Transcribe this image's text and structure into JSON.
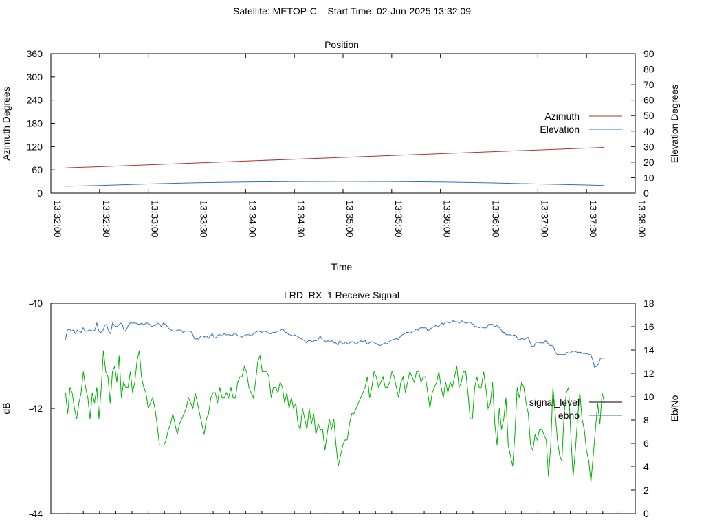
{
  "page_title": "Satellite: METOP-C    Start Time: 02-Jun-2025 13:32:09",
  "colors": {
    "azimuth": "#b03030",
    "elevation": "#2f6fbf",
    "signal_level": "#000000",
    "ebno": "#2f6fbf",
    "green_trace": "#00b000"
  },
  "chart_data": [
    {
      "type": "line",
      "title": "Position",
      "xlabel": "Time",
      "ylabel": "Azimuth Degrees",
      "y2label": "Elevation Degrees",
      "xlim": [
        "13:32:00",
        "13:38:00"
      ],
      "ylim": [
        0,
        360
      ],
      "y2lim": [
        0,
        90
      ],
      "x_ticks": [
        "13:32:00",
        "13:32:30",
        "13:33:00",
        "13:33:30",
        "13:34:00",
        "13:34:30",
        "13:35:00",
        "13:35:30",
        "13:36:00",
        "13:36:30",
        "13:37:00",
        "13:37:30",
        "13:38:00"
      ],
      "y_ticks": [
        "0",
        "60",
        "120",
        "180",
        "240",
        "300",
        "360"
      ],
      "y2_ticks": [
        "0",
        "10",
        "20",
        "30",
        "40",
        "50",
        "60",
        "70",
        "80",
        "90"
      ],
      "legend_position": "right",
      "series": [
        {
          "name": "Azimuth",
          "axis": "y",
          "x": [
            "13:32:09",
            "13:37:41"
          ],
          "values": [
            65,
            118
          ]
        },
        {
          "name": "Elevation",
          "axis": "y2",
          "x": [
            "13:32:09",
            "13:32:30",
            "13:33:00",
            "13:33:30",
            "13:34:00",
            "13:34:30",
            "13:35:00",
            "13:35:30",
            "13:36:00",
            "13:36:30",
            "13:37:00",
            "13:37:30",
            "13:37:41"
          ],
          "values": [
            4.5,
            5.0,
            6.0,
            6.8,
            7.2,
            7.5,
            7.6,
            7.5,
            7.2,
            6.7,
            6.0,
            5.3,
            5.0
          ]
        }
      ]
    },
    {
      "type": "line",
      "title": "LRD_RX_1 Receive Signal",
      "ylabel": "dB",
      "y2label": "Eb/No",
      "ylim": [
        -44,
        -40
      ],
      "y2lim": [
        0,
        18
      ],
      "y_ticks": [
        "-44",
        "-42",
        "-40"
      ],
      "y2_ticks": [
        "0",
        "2",
        "4",
        "6",
        "8",
        "10",
        "12",
        "14",
        "16",
        "18"
      ],
      "legend_position": "right",
      "series": [
        {
          "name": "signal_level",
          "axis": "y",
          "values": []
        },
        {
          "name": "ebno",
          "axis": "y2",
          "values": [
            14.9,
            15.7,
            15.8,
            15.6,
            15.7,
            15.4,
            15.7,
            15.6,
            15.5,
            15.9,
            15.6,
            15.6,
            15.7,
            15.7,
            15.6,
            15.7,
            16.3,
            15.6,
            15.5,
            15.6,
            16.1,
            16.2,
            15.6,
            15.4,
            16.3,
            16.1,
            16.0,
            16.1,
            16.3,
            16.2,
            15.6,
            15.7,
            16.1,
            16.3,
            16.3,
            16.3,
            16.3,
            16.2,
            16.2,
            16.3,
            16.1,
            16.3,
            16.3,
            16.2,
            16.0,
            16.1,
            16.1,
            16.3,
            16.2,
            16.0,
            16.3,
            16.2,
            16.0,
            15.8,
            15.7,
            15.6,
            15.6,
            15.7,
            15.7,
            15.7,
            15.5,
            15.6,
            15.6,
            15.6,
            15.6,
            15.3,
            14.9,
            15.0,
            14.9,
            15.2,
            15.2,
            15.1,
            15.2,
            15.0,
            15.2,
            15.4,
            15.0,
            15.1,
            15.3,
            15.3,
            15.2,
            15.4,
            15.3,
            15.3,
            15.3,
            15.2,
            15.4,
            15.4,
            15.2,
            15.2,
            15.1,
            15.2,
            15.3,
            15.3,
            15.3,
            15.2,
            15.4,
            15.5,
            15.6,
            15.6,
            15.5,
            15.6,
            15.6,
            15.5,
            15.4,
            15.4,
            15.5,
            15.5,
            15.6,
            15.6,
            15.7,
            15.8,
            15.5,
            15.5,
            15.3,
            15.3,
            15.2,
            15.3,
            15.2,
            15.1,
            15.0,
            14.9,
            14.8,
            14.6,
            14.8,
            14.8,
            14.7,
            14.8,
            14.8,
            14.9,
            15.2,
            14.9,
            14.8,
            14.7,
            14.8,
            14.7,
            14.8,
            14.6,
            14.6,
            14.4,
            14.8,
            14.6,
            14.5,
            14.7,
            14.5,
            14.6,
            14.7,
            14.7,
            14.5,
            14.6,
            14.7,
            14.8,
            14.7,
            14.8,
            14.5,
            14.6,
            14.7,
            14.7,
            14.6,
            14.5,
            14.4,
            14.4,
            14.5,
            14.6,
            14.5,
            14.7,
            14.8,
            14.9,
            14.9,
            15.0,
            14.9,
            15.2,
            15.3,
            15.4,
            15.5,
            15.5,
            15.4,
            15.6,
            15.6,
            15.8,
            15.7,
            15.9,
            15.9,
            15.9,
            15.9,
            15.6,
            15.8,
            15.9,
            16.0,
            16.1,
            16.0,
            16.1,
            16.3,
            16.2,
            16.4,
            16.4,
            16.3,
            16.4,
            16.5,
            16.4,
            16.4,
            16.3,
            16.5,
            16.4,
            16.3,
            16.3,
            16.4,
            16.3,
            16.2,
            16.0,
            16.0,
            15.9,
            16.0,
            15.9,
            15.9,
            15.9,
            16.2,
            16.2,
            16.2,
            16.0,
            16.1,
            16.0,
            15.8,
            15.5,
            15.5,
            15.3,
            15.3,
            15.3,
            15.2,
            15.3,
            15.2,
            14.9,
            14.9,
            15.0,
            14.9,
            15.0,
            15.1,
            14.7,
            14.3,
            14.3,
            14.6,
            14.7,
            14.6,
            14.6,
            14.6,
            14.8,
            14.6,
            14.4,
            14.4,
            14.3,
            13.8,
            13.6,
            13.6,
            13.6,
            13.6,
            13.6,
            13.8,
            13.7,
            13.8,
            13.9,
            13.9,
            13.8,
            13.8,
            13.8,
            13.7,
            13.7,
            13.7,
            13.6,
            13.6,
            13.2,
            12.5,
            12.6,
            12.8,
            13.3,
            13.3,
            13.3
          ]
        },
        {
          "name": "",
          "axis": "y",
          "values": [
            -41.7,
            -42.1,
            -41.6,
            -41.7,
            -42.0,
            -42.2,
            -41.9,
            -41.7,
            -41.3,
            -41.6,
            -41.8,
            -42.2,
            -41.7,
            -41.9,
            -41.6,
            -42.2,
            -41.6,
            -40.9,
            -41.3,
            -41.4,
            -41.9,
            -41.3,
            -41.2,
            -41.5,
            -41.0,
            -41.8,
            -41.5,
            -41.6,
            -41.6,
            -41.3,
            -41.7,
            -41.5,
            -41.1,
            -40.9,
            -41.4,
            -41.6,
            -41.7,
            -42.0,
            -41.9,
            -41.8,
            -42.0,
            -42.3,
            -42.7,
            -42.7,
            -42.7,
            -42.6,
            -42.4,
            -42.3,
            -42.1,
            -42.3,
            -42.5,
            -42.3,
            -42.2,
            -42.1,
            -42.0,
            -41.8,
            -41.9,
            -42.0,
            -41.7,
            -41.9,
            -42.1,
            -42.3,
            -42.5,
            -42.2,
            -42.1,
            -41.8,
            -41.7,
            -41.7,
            -41.9,
            -41.6,
            -41.8,
            -41.8,
            -41.7,
            -41.8,
            -41.6,
            -41.8,
            -41.8,
            -41.5,
            -41.4,
            -41.4,
            -41.2,
            -41.3,
            -41.6,
            -41.7,
            -41.8,
            -41.5,
            -41.1,
            -41.0,
            -41.3,
            -41.3,
            -41.3,
            -41.4,
            -41.8,
            -41.6,
            -41.6,
            -41.7,
            -41.5,
            -41.6,
            -41.9,
            -41.7,
            -42.0,
            -41.8,
            -42.0,
            -41.9,
            -42.3,
            -42.4,
            -42.0,
            -42.2,
            -42.4,
            -42.0,
            -42.3,
            -42.1,
            -42.5,
            -42.3,
            -42.4,
            -42.4,
            -42.8,
            -42.5,
            -42.2,
            -42.4,
            -42.2,
            -42.7,
            -43.1,
            -42.9,
            -42.7,
            -42.6,
            -42.6,
            -42.3,
            -42.1,
            -42.1,
            -42.0,
            -41.9,
            -41.8,
            -41.7,
            -41.6,
            -41.4,
            -41.8,
            -41.6,
            -41.3,
            -41.4,
            -41.6,
            -41.5,
            -41.4,
            -41.6,
            -41.6,
            -41.5,
            -41.3,
            -41.4,
            -41.6,
            -41.8,
            -41.5,
            -41.4,
            -41.7,
            -41.5,
            -41.3,
            -41.4,
            -41.5,
            -41.3,
            -41.3,
            -41.5,
            -41.4,
            -41.4,
            -41.7,
            -42.0,
            -41.7,
            -41.6,
            -41.5,
            -41.3,
            -41.6,
            -41.8,
            -41.5,
            -41.7,
            -41.5,
            -41.6,
            -41.4,
            -41.2,
            -41.6,
            -41.5,
            -41.3,
            -41.3,
            -41.7,
            -42.2,
            -42.2,
            -41.6,
            -41.4,
            -41.6,
            -41.6,
            -41.3,
            -41.6,
            -42.0,
            -41.9,
            -41.5,
            -42.3,
            -42.7,
            -42.0,
            -42.4,
            -42.2,
            -41.8,
            -42.7,
            -42.9,
            -43.1,
            -42.5,
            -41.6,
            -41.8,
            -41.5,
            -41.6,
            -41.9,
            -42.1,
            -42.7,
            -42.8,
            -42.5,
            -42.6,
            -42.4,
            -42.4,
            -42.5,
            -42.6,
            -43.3,
            -42.7,
            -41.6,
            -42.1,
            -42.6,
            -42.9,
            -43.0,
            -42.1,
            -41.7,
            -41.6,
            -42.5,
            -43.3,
            -42.8,
            -42.2,
            -41.7,
            -42.2,
            -42.4,
            -42.8,
            -43.0,
            -43.4,
            -42.9,
            -42.4,
            -41.9,
            -42.3,
            -41.7,
            -41.9
          ]
        }
      ]
    }
  ]
}
